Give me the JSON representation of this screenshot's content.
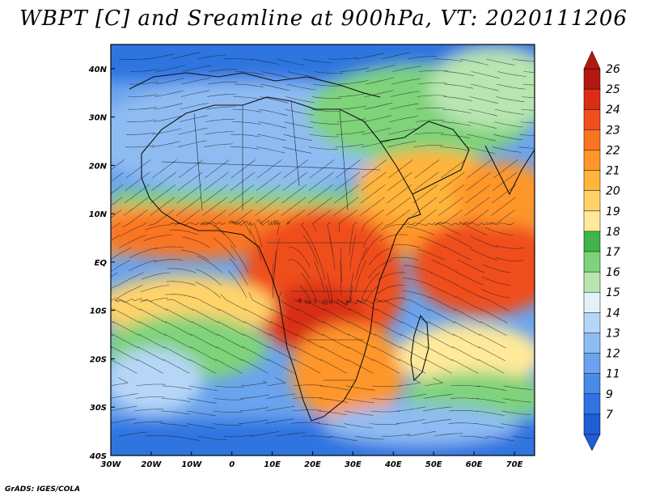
{
  "title": "WBPT [C] and Sreamline at 900hPa, VT: 2020111206",
  "credit": "GrADS: IGES/COLA",
  "lat_labels": [
    "40N",
    "30N",
    "20N",
    "10N",
    "EQ",
    "10S",
    "20S",
    "30S",
    "40S"
  ],
  "lat_values": [
    40,
    30,
    20,
    10,
    0,
    -10,
    -20,
    -30,
    -40
  ],
  "lon_labels": [
    "30W",
    "20W",
    "10W",
    "0",
    "10E",
    "20E",
    "30E",
    "40E",
    "50E",
    "60E",
    "70E"
  ],
  "lon_values": [
    -30,
    -20,
    -10,
    0,
    10,
    20,
    30,
    40,
    50,
    60,
    70
  ],
  "colorbar": {
    "labels": [
      "7",
      "9",
      "11",
      "12",
      "13",
      "14",
      "15",
      "16",
      "17",
      "18",
      "19",
      "20",
      "21",
      "22",
      "23",
      "24",
      "25",
      "26"
    ],
    "colors": [
      "#1f5fd6",
      "#2f74e0",
      "#4a8ae8",
      "#6aa3ee",
      "#8ebcf2",
      "#b6d6f7",
      "#e2f2f7",
      "#b8e5b0",
      "#7fd37a",
      "#3fb54a",
      "#ffe99a",
      "#ffd36a",
      "#ffb43a",
      "#ff962a",
      "#fa7420",
      "#f04e1c",
      "#d82e16",
      "#b3180f"
    ]
  },
  "map": {
    "lon_range": [
      -30,
      75
    ],
    "lat_range": [
      -40,
      45
    ],
    "field_regions": [
      {
        "name": "north-high-cold",
        "color": "#2f74e0"
      },
      {
        "name": "sahara-cool",
        "color": "#8ebcf2"
      },
      {
        "name": "equatorial-warm",
        "color": "#fa7420"
      },
      {
        "name": "central-africa-hot",
        "color": "#f04e1c"
      },
      {
        "name": "indian-ocean-warm",
        "color": "#ff962a"
      },
      {
        "name": "south-atlantic-green",
        "color": "#7fd37a"
      },
      {
        "name": "southern-cold",
        "color": "#2f74e0"
      }
    ]
  }
}
